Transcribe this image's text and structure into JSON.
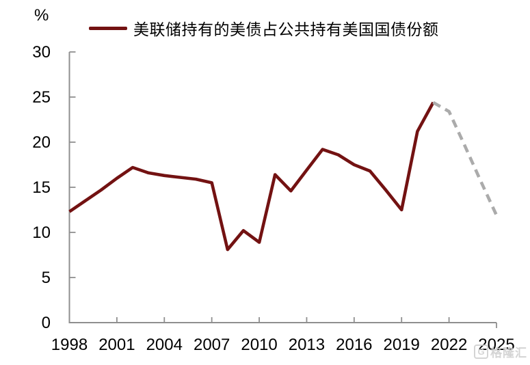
{
  "unit_label": "%",
  "legend": {
    "label": "美联储持有的美债占公共持有美国国债份额",
    "swatch_color": "#731212"
  },
  "watermark": {
    "icon": "G",
    "text": "格隆汇"
  },
  "chart_data": {
    "type": "line",
    "title": "",
    "ylabel": "%",
    "xlabel": "",
    "grid": false,
    "legend_position": "top",
    "xlim": [
      1998,
      2025
    ],
    "ylim": [
      0,
      30
    ],
    "x_ticks": [
      1998,
      2001,
      2004,
      2007,
      2010,
      2013,
      2016,
      2019,
      2022,
      2025
    ],
    "y_ticks": [
      0,
      5,
      10,
      15,
      20,
      25,
      30
    ],
    "axis_color": "#8F8F8F",
    "series": [
      {
        "name": "fed-holdings-share-solid-line",
        "line_style": "solid",
        "color": "#731212",
        "x": [
          1998,
          1999,
          2000,
          2001,
          2002,
          2003,
          2004,
          2005,
          2006,
          2007,
          2008,
          2009,
          2010,
          2011,
          2012,
          2013,
          2014,
          2015,
          2016,
          2017,
          2018,
          2019,
          2020,
          2021
        ],
        "values": [
          12.3,
          13.5,
          14.7,
          16.0,
          17.2,
          16.6,
          16.3,
          16.1,
          15.9,
          15.5,
          8.1,
          10.2,
          8.9,
          16.4,
          14.6,
          16.9,
          19.2,
          18.6,
          17.5,
          16.8,
          14.7,
          12.5,
          21.2,
          24.4
        ]
      },
      {
        "name": "fed-holdings-share-projection-dashed-line",
        "line_style": "dashed",
        "color": "#ABABAB",
        "x": [
          2021,
          2022,
          2023,
          2024,
          2025
        ],
        "values": [
          24.4,
          23.4,
          19.6,
          15.7,
          11.9
        ]
      }
    ]
  }
}
